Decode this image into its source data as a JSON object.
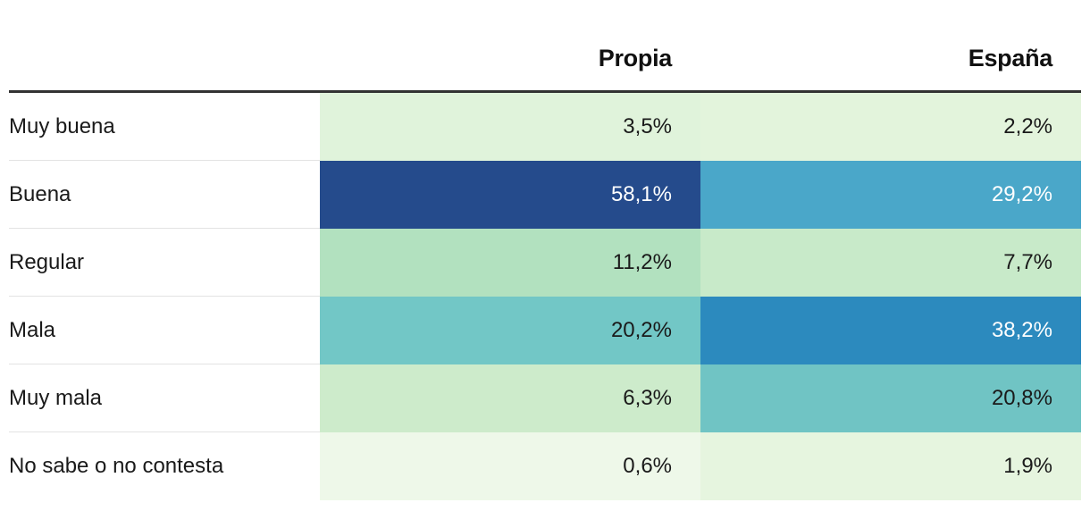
{
  "chart_data": {
    "type": "table",
    "columns": [
      "Propia",
      "España"
    ],
    "rows": [
      {
        "label": "Muy buena",
        "values": [
          "3,5%",
          "2,2%"
        ],
        "numeric": [
          3.5,
          2.2
        ],
        "colors": [
          "#e0f3db",
          "#e3f4dc"
        ]
      },
      {
        "label": "Buena",
        "values": [
          "58,1%",
          "29,2%"
        ],
        "numeric": [
          58.1,
          29.2
        ],
        "colors": [
          "#254b8c",
          "#4aa7c9"
        ]
      },
      {
        "label": "Regular",
        "values": [
          "11,2%",
          "7,7%"
        ],
        "numeric": [
          11.2,
          7.7
        ],
        "colors": [
          "#b2e1bf",
          "#c8eac9"
        ]
      },
      {
        "label": "Mala",
        "values": [
          "20,2%",
          "38,2%"
        ],
        "numeric": [
          20.2,
          38.2
        ],
        "colors": [
          "#72c7c6",
          "#2c8abe"
        ]
      },
      {
        "label": "Muy mala",
        "values": [
          "6,3%",
          "20,8%"
        ],
        "numeric": [
          6.3,
          20.8
        ],
        "colors": [
          "#cdebcb",
          "#70c4c4"
        ]
      },
      {
        "label": "No sabe o no contesta",
        "values": [
          "0,6%",
          "1,9%"
        ],
        "numeric": [
          0.6,
          1.9
        ],
        "colors": [
          "#eef8e9",
          "#e6f5df"
        ]
      }
    ],
    "text_colors": {
      "dark": "#1a1a1a",
      "light": "#ffffff"
    }
  }
}
